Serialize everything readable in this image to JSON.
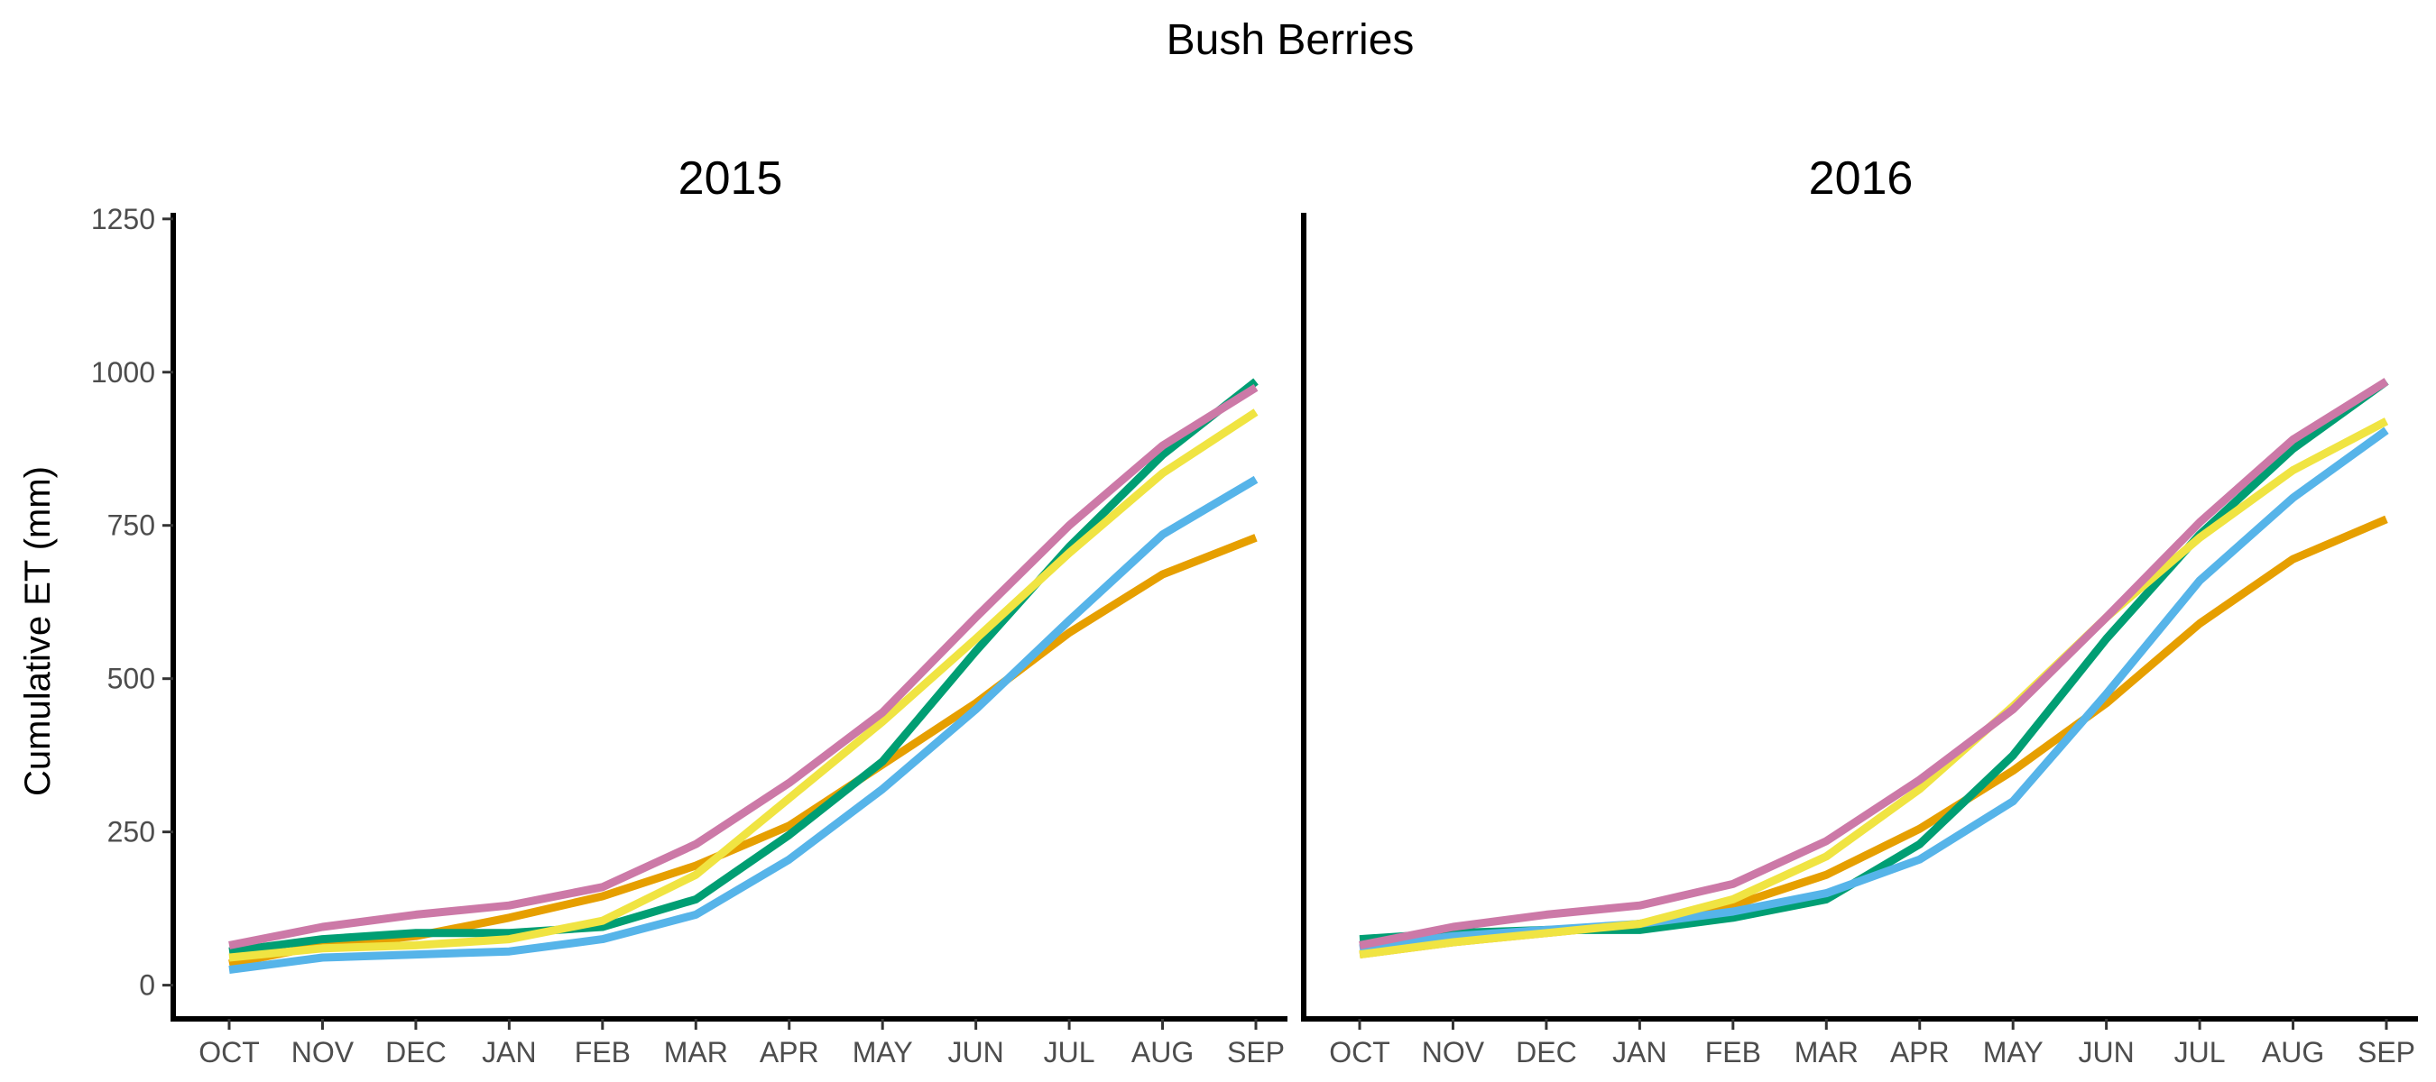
{
  "chart_data": {
    "type": "line",
    "title": "Bush Berries",
    "ylabel": "Cumulative ET (mm)",
    "xlabel": "",
    "ylim": [
      -55,
      1260
    ],
    "yticks": [
      0,
      250,
      500,
      750,
      1000,
      1250
    ],
    "categories": [
      "OCT",
      "NOV",
      "DEC",
      "JAN",
      "FEB",
      "MAR",
      "APR",
      "MAY",
      "JUN",
      "JUL",
      "AUG",
      "SEP"
    ],
    "grid": false,
    "legend": "none",
    "panels": [
      {
        "title": "2015",
        "series": [
          {
            "color": "#E69F00",
            "values": [
              35,
              65,
              80,
              110,
              145,
              195,
              260,
              360,
              460,
              575,
              670,
              730
            ]
          },
          {
            "color": "#009E73",
            "values": [
              55,
              75,
              85,
              85,
              95,
              140,
              245,
              365,
              545,
              715,
              865,
              985
            ]
          },
          {
            "color": "#56B4E9",
            "values": [
              25,
              45,
              50,
              55,
              75,
              115,
              205,
              320,
              450,
              595,
              735,
              825
            ]
          },
          {
            "color": "#F0E442",
            "values": [
              45,
              60,
              65,
              75,
              105,
              180,
              305,
              430,
              565,
              705,
              835,
              935
            ]
          },
          {
            "color": "#CC79A7",
            "values": [
              65,
              95,
              115,
              130,
              160,
              230,
              330,
              445,
              600,
              750,
              880,
              975
            ]
          }
        ]
      },
      {
        "title": "2016",
        "series": [
          {
            "color": "#E69F00",
            "values": [
              50,
              70,
              85,
              100,
              130,
              180,
              255,
              350,
              460,
              590,
              695,
              760
            ]
          },
          {
            "color": "#009E73",
            "values": [
              75,
              85,
              90,
              90,
              110,
              140,
              230,
              375,
              565,
              735,
              875,
              985
            ]
          },
          {
            "color": "#56B4E9",
            "values": [
              60,
              80,
              90,
              100,
              120,
              150,
              205,
              300,
              475,
              660,
              795,
              905
            ]
          },
          {
            "color": "#F0E442",
            "values": [
              50,
              70,
              85,
              100,
              140,
              210,
              320,
              455,
              600,
              730,
              840,
              920
            ]
          },
          {
            "color": "#CC79A7",
            "values": [
              65,
              95,
              115,
              130,
              165,
              235,
              335,
              450,
              600,
              755,
              890,
              985
            ]
          }
        ]
      }
    ]
  }
}
